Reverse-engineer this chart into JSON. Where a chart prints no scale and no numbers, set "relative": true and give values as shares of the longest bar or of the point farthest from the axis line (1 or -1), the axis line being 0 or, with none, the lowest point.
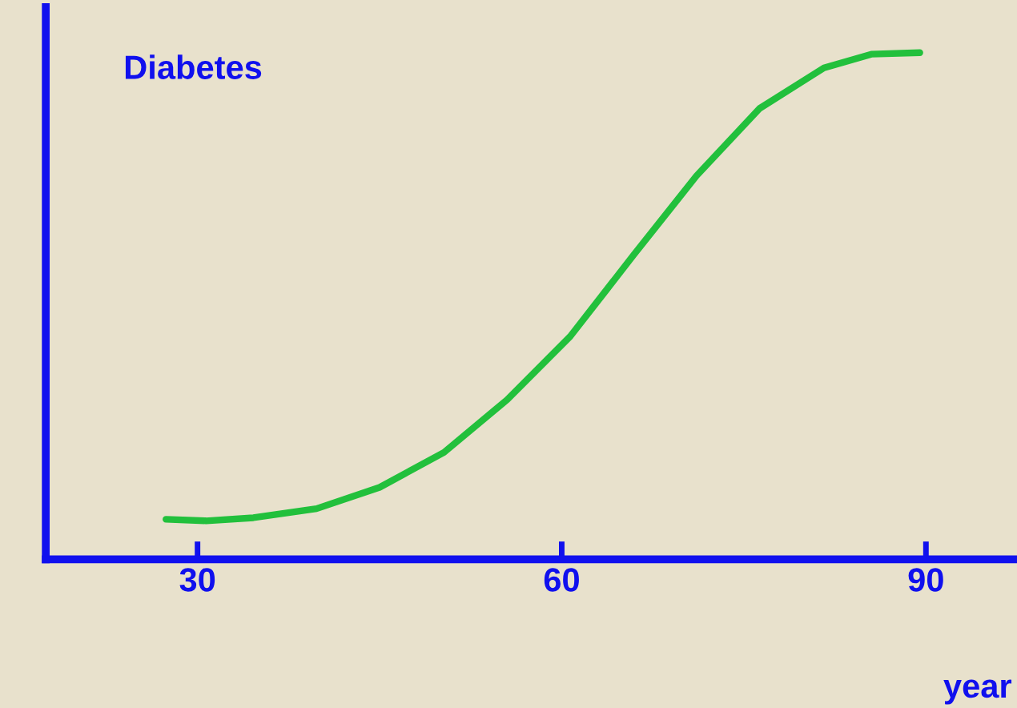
{
  "chart_data": {
    "type": "line",
    "title": "Diabetes",
    "xlabel": "year",
    "relative": true,
    "tick_labels": "x",
    "xlim": [
      17.5,
      97.5
    ],
    "xticks": [
      30,
      60,
      90
    ],
    "grid": false,
    "legend": false,
    "marker": "none",
    "line_style": "solid",
    "series": [
      {
        "color": "#22c03c",
        "x": [
          27.4,
          30.7,
          34.6,
          39.8,
          45,
          50.3,
          55.5,
          60.7,
          65.9,
          71.1,
          76.3,
          81.6,
          85.5,
          89.5
        ],
        "values": [
          0.079,
          0.076,
          0.082,
          0.1,
          0.142,
          0.211,
          0.315,
          0.44,
          0.6,
          0.757,
          0.89,
          0.97,
          0.997,
          1.0
        ]
      }
    ]
  }
}
